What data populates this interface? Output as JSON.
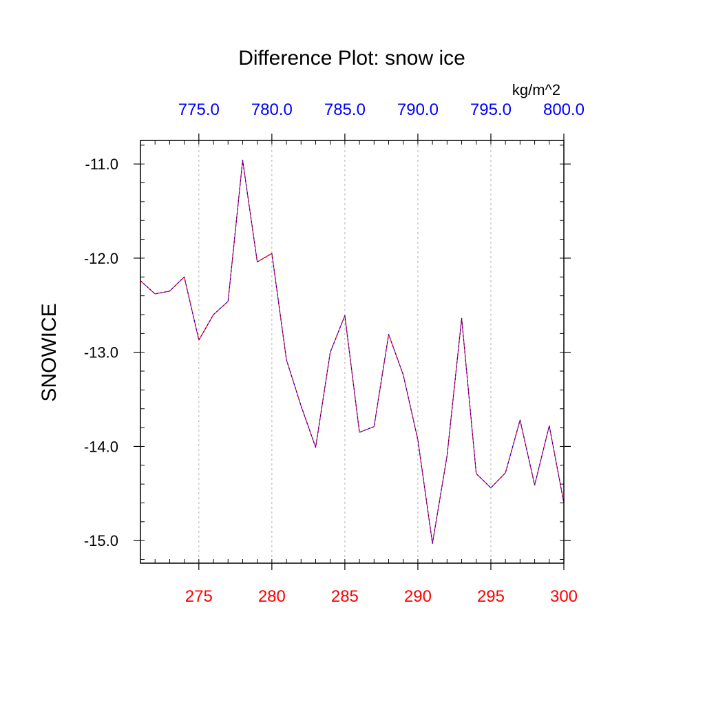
{
  "chart_data": {
    "type": "line",
    "title": "Difference Plot: snow ice",
    "ylabel": "SNOWICE",
    "units": "kg/m^2",
    "x": [
      271,
      272,
      273,
      274,
      275,
      276,
      277,
      278,
      279,
      280,
      281,
      282,
      283,
      284,
      285,
      286,
      287,
      288,
      289,
      290,
      291,
      292,
      293,
      294,
      295,
      296,
      297,
      298,
      299,
      300
    ],
    "xlim": [
      271,
      300
    ],
    "ylim": [
      -15.24,
      -10.75
    ],
    "series": [
      {
        "values": [
          -12.24,
          -12.38,
          -12.35,
          -12.2,
          -12.87,
          -12.6,
          -12.46,
          -10.96,
          -12.04,
          -11.95,
          -13.08,
          -13.57,
          -14.01,
          -13.0,
          -12.61,
          -13.85,
          -13.79,
          -12.81,
          -13.24,
          -13.93,
          -15.03,
          -14.1,
          -12.64,
          -14.29,
          -14.44,
          -14.28,
          -13.72,
          -14.41,
          -13.78,
          -14.6
        ],
        "color_primary": "#ff0000",
        "color_secondary": "#0000ff"
      }
    ],
    "bottom_axis": {
      "ticks": [
        275,
        280,
        285,
        290,
        295,
        300
      ],
      "labels": [
        "275",
        "280",
        "285",
        "290",
        "295",
        "300"
      ],
      "color": "#ff0000"
    },
    "top_axis": {
      "ticks": [
        275,
        280,
        285,
        290,
        295,
        300
      ],
      "labels": [
        "775.0",
        "780.0",
        "785.0",
        "790.0",
        "795.0",
        "800.0"
      ],
      "color": "#0000ff"
    },
    "left_axis": {
      "ticks": [
        -11.0,
        -12.0,
        -13.0,
        -14.0,
        -15.0
      ],
      "labels": [
        "-11.0",
        "-12.0",
        "-13.0",
        "-14.0",
        "-15.0"
      ],
      "minor_step": 0.2
    },
    "grid": {
      "vertical": true,
      "horizontal": false,
      "style": "dashed",
      "color": "#b0b0b0"
    }
  }
}
